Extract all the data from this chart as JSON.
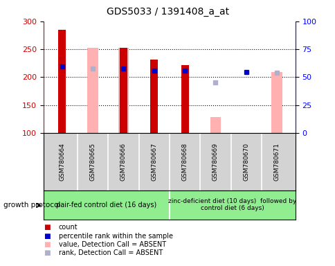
{
  "title": "GDS5033 / 1391408_a_at",
  "samples": [
    "GSM780664",
    "GSM780665",
    "GSM780666",
    "GSM780667",
    "GSM780668",
    "GSM780669",
    "GSM780670",
    "GSM780671"
  ],
  "ylim_left": [
    100,
    300
  ],
  "ylim_right": [
    0,
    100
  ],
  "yticks_left": [
    100,
    150,
    200,
    250,
    300
  ],
  "yticks_right": [
    0,
    25,
    50,
    75,
    100
  ],
  "red_bars": [
    285,
    null,
    252,
    231,
    222,
    null,
    null,
    null
  ],
  "pink_bars": [
    null,
    252,
    252,
    null,
    null,
    128,
    null,
    209
  ],
  "blue_markers": [
    219,
    null,
    215,
    211,
    212,
    null,
    209,
    null
  ],
  "lavender_markers": [
    null,
    215,
    null,
    null,
    null,
    190,
    null,
    208
  ],
  "group1_label": "pair-fed control diet (16 days)",
  "group2_label": "zinc-deficient diet (10 days)  followed by\ncontrol diet (6 days)",
  "bg_color": "#ffffff",
  "plot_bg_color": "#ffffff",
  "tick_area_color": "#d3d3d3",
  "group_color": "#90ee90",
  "red_color": "#cc0000",
  "pink_color": "#ffb0b0",
  "blue_color": "#0000cc",
  "lavender_color": "#b0b0cc",
  "bar_width": 0.25,
  "ybase": 100,
  "gridlines": [
    150,
    200,
    250
  ],
  "n_group1": 4,
  "n_group2": 4
}
